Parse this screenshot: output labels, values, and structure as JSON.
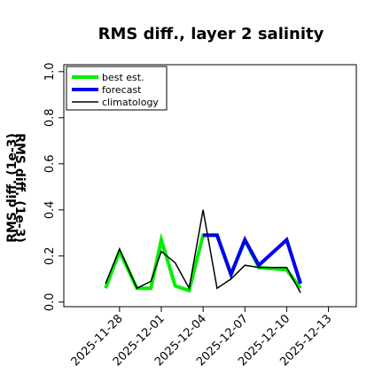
{
  "chart_data": {
    "type": "line",
    "title": "RMS diff., layer 2 salinity",
    "xlabel": "",
    "ylabel": "RMS diff. (1e-3)",
    "ylim": [
      -0.02,
      1.03
    ],
    "yticks": [
      "0.0",
      "0.2",
      "0.4",
      "0.6",
      "0.8",
      "1.0"
    ],
    "ytick_values": [
      0.0,
      0.2,
      0.4,
      0.6,
      0.8,
      1.0
    ],
    "xlim": [
      "2025-11-24",
      "2025-12-15"
    ],
    "xticks": [
      "2025-11-28",
      "2025-12-01",
      "2025-12-04",
      "2025-12-07",
      "2025-12-10",
      "2025-12-13"
    ],
    "xtick_colors": [
      "#000000",
      "#000000",
      "#228B22",
      "#000000",
      "#000000",
      "#000000"
    ],
    "grid": false,
    "legend": "top-left",
    "series": [
      {
        "name": "best est.",
        "color": "#00ee00",
        "width": 4,
        "points": [
          {
            "x": "2025-11-27 00:00",
            "y": 0.06
          },
          {
            "x": "2025-11-28 00:00",
            "y": 0.22
          },
          {
            "x": "2025-11-29 06:00",
            "y": 0.06
          },
          {
            "x": "2025-11-30 06:00",
            "y": 0.06
          },
          {
            "x": "2025-12-01 00:00",
            "y": 0.27
          },
          {
            "x": "2025-12-02 00:00",
            "y": 0.07
          },
          {
            "x": "2025-12-03 00:00",
            "y": 0.05
          },
          {
            "x": "2025-12-04 00:00",
            "y": 0.29
          },
          {
            "x": "2025-12-05 00:00",
            "y": 0.29
          },
          {
            "x": "2025-12-06 00:00",
            "y": 0.12
          },
          {
            "x": "2025-12-07 00:00",
            "y": 0.27
          },
          {
            "x": "2025-12-08 00:00",
            "y": 0.15
          },
          {
            "x": "2025-12-10 00:00",
            "y": 0.14
          },
          {
            "x": "2025-12-11 00:00",
            "y": 0.06
          }
        ]
      },
      {
        "name": "forecast",
        "color": "#0000ee",
        "width": 4,
        "points": [
          {
            "x": "2025-12-04 00:00",
            "y": 0.29
          },
          {
            "x": "2025-12-05 00:00",
            "y": 0.29
          },
          {
            "x": "2025-12-06 00:00",
            "y": 0.12
          },
          {
            "x": "2025-12-07 00:00",
            "y": 0.27
          },
          {
            "x": "2025-12-08 00:00",
            "y": 0.16
          },
          {
            "x": "2025-12-10 00:00",
            "y": 0.27
          },
          {
            "x": "2025-12-11 00:00",
            "y": 0.08
          }
        ],
        "connector": {
          "color": "#0000ee",
          "width": 1
        }
      },
      {
        "name": "climatology",
        "color": "#000000",
        "width": 1.5,
        "points": [
          {
            "x": "2025-11-27 00:00",
            "y": 0.08
          },
          {
            "x": "2025-11-28 00:00",
            "y": 0.23
          },
          {
            "x": "2025-11-29 06:00",
            "y": 0.06
          },
          {
            "x": "2025-11-30 06:00",
            "y": 0.09
          },
          {
            "x": "2025-12-01 00:00",
            "y": 0.22
          },
          {
            "x": "2025-12-02 00:00",
            "y": 0.17
          },
          {
            "x": "2025-12-03 00:00",
            "y": 0.06
          },
          {
            "x": "2025-12-04 00:00",
            "y": 0.4
          },
          {
            "x": "2025-12-05 00:00",
            "y": 0.06
          },
          {
            "x": "2025-12-06 00:00",
            "y": 0.1
          },
          {
            "x": "2025-12-07 00:00",
            "y": 0.16
          },
          {
            "x": "2025-12-08 00:00",
            "y": 0.15
          },
          {
            "x": "2025-12-10 00:00",
            "y": 0.15
          },
          {
            "x": "2025-12-11 00:00",
            "y": 0.04
          }
        ]
      }
    ]
  }
}
